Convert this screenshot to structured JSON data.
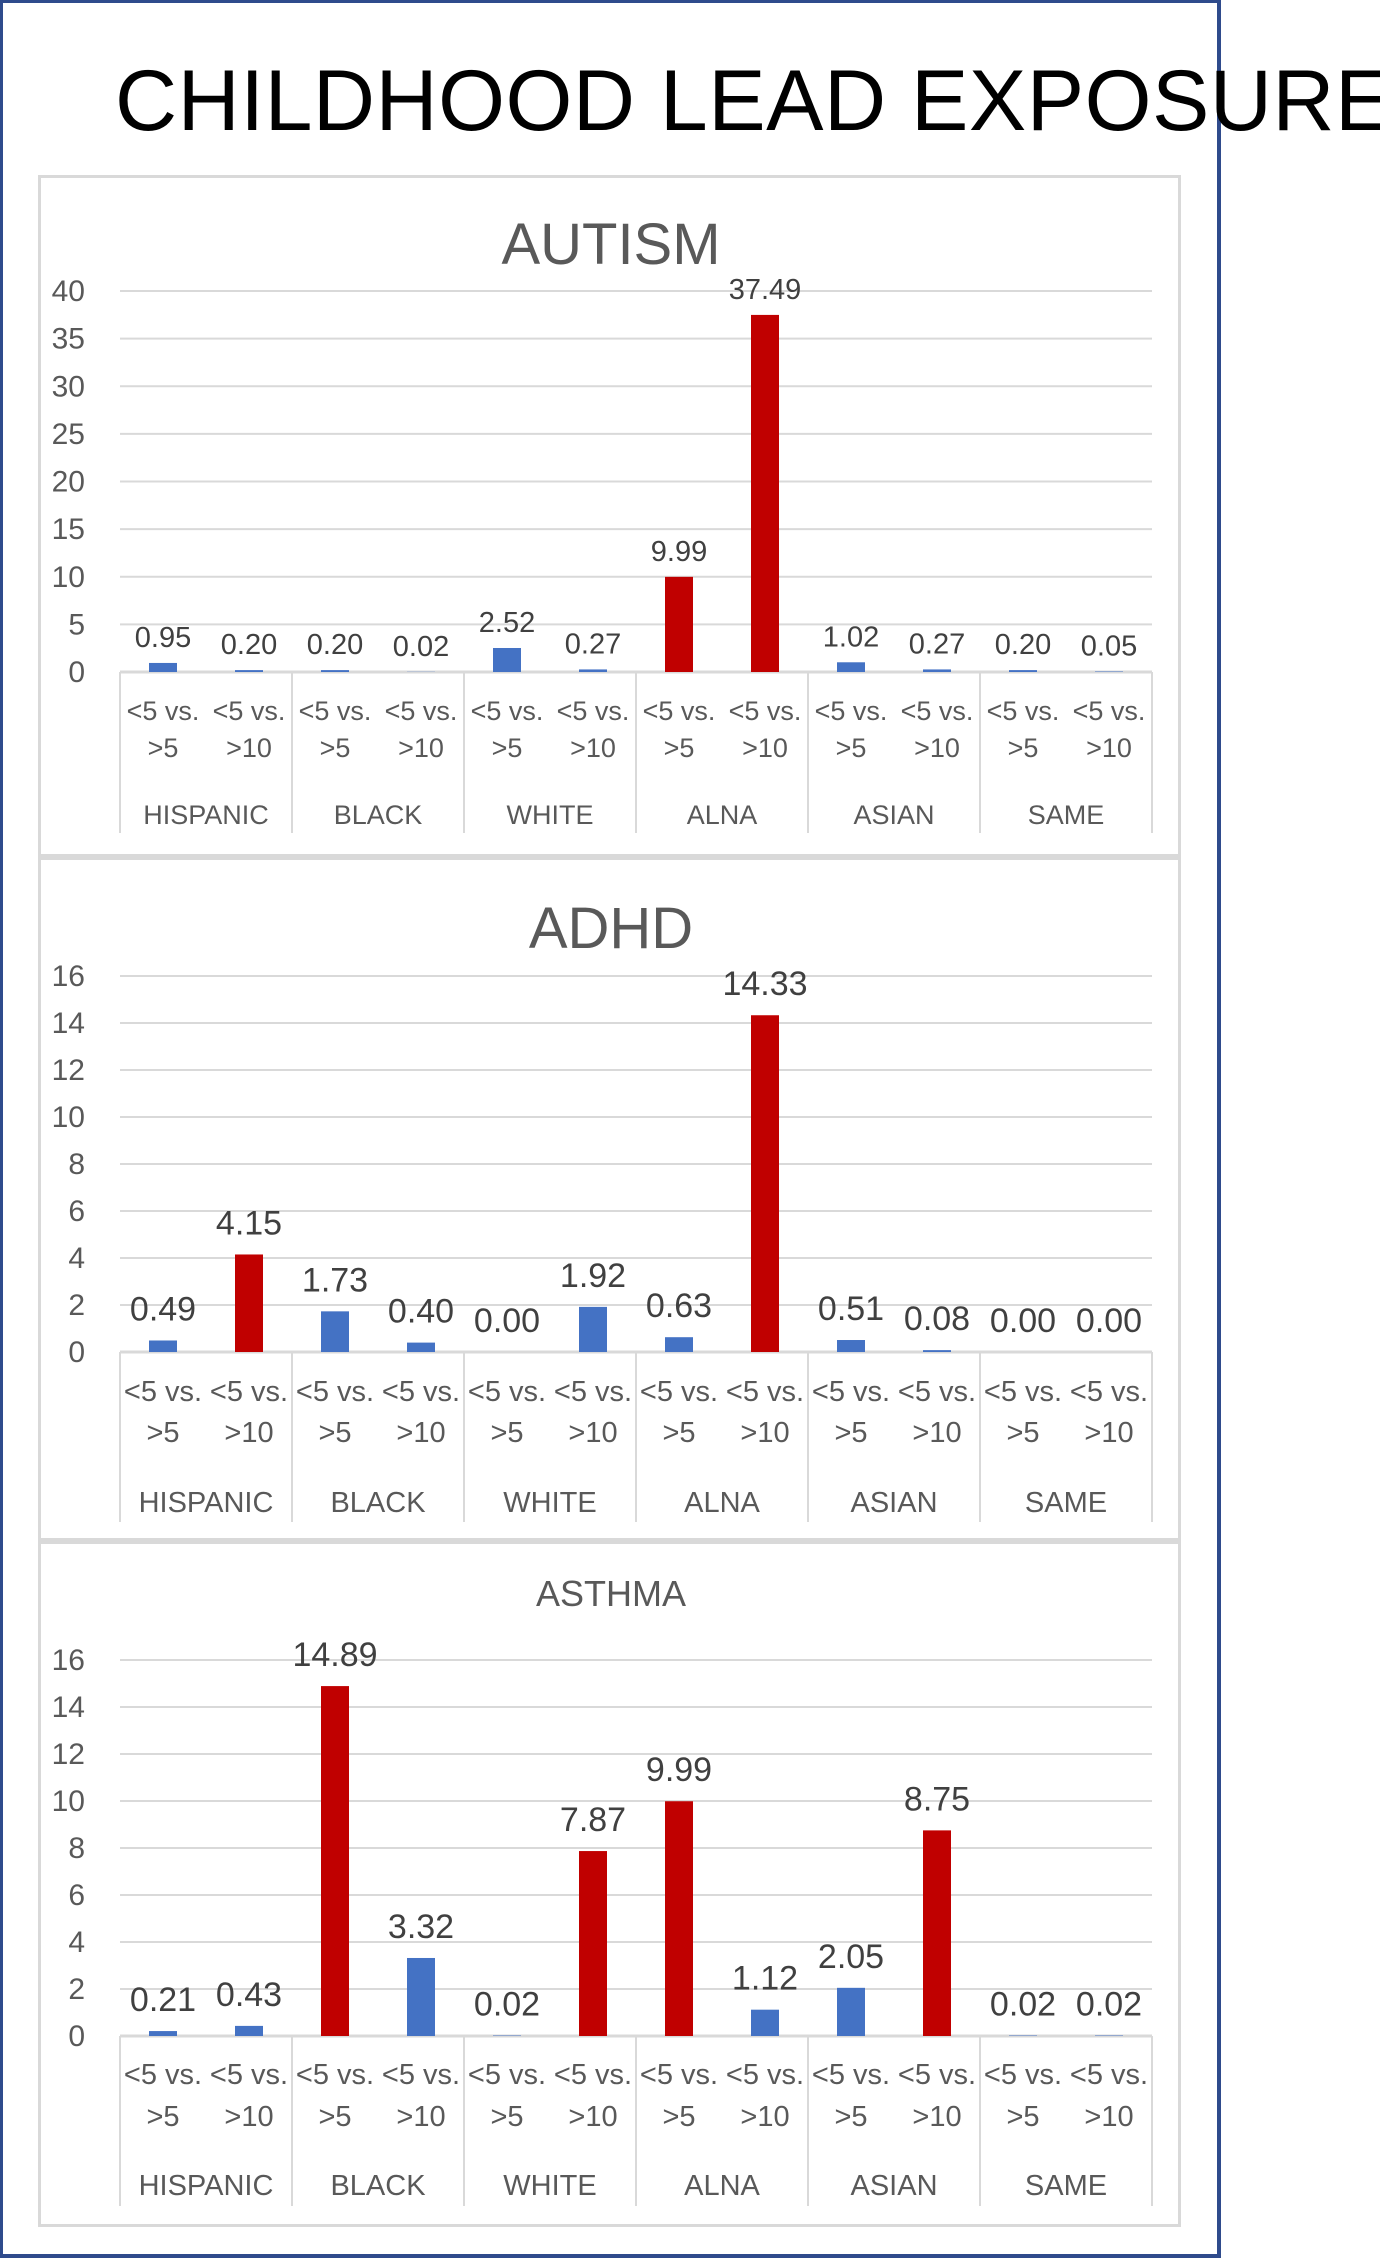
{
  "page": {
    "title": "CHILDHOOD LEAD EXPOSURE"
  },
  "colors": {
    "low": "#4472c4",
    "high": "#c00000",
    "grid": "#d9d9d9",
    "frame": "#2f4b8c"
  },
  "chart_data": [
    {
      "type": "bar",
      "title": "AUTISM",
      "groups": [
        "HISPANIC",
        "BLACK",
        "WHITE",
        "ALNA",
        "ASIAN",
        "SAME"
      ],
      "subcategories": [
        [
          "<5 vs.",
          ">5"
        ],
        [
          "<5 vs.",
          ">10"
        ]
      ],
      "values": [
        0.95,
        0.2,
        0.2,
        0.02,
        2.52,
        0.27,
        9.99,
        37.49,
        1.02,
        0.27,
        0.2,
        0.05
      ],
      "labels": [
        "0.95",
        "0.20",
        "0.20",
        "0.02",
        "2.52",
        "0.27",
        "9.99",
        "37.49",
        "1.02",
        "0.27",
        "0.20",
        "0.05"
      ],
      "highlight": [
        false,
        false,
        false,
        false,
        false,
        false,
        true,
        true,
        false,
        false,
        false,
        false
      ],
      "ylim": [
        0,
        40
      ],
      "yticks": [
        0,
        5,
        10,
        15,
        20,
        25,
        30,
        35,
        40
      ],
      "grid": true,
      "legend": "none"
    },
    {
      "type": "bar",
      "title": "ADHD",
      "groups": [
        "HISPANIC",
        "BLACK",
        "WHITE",
        "ALNA",
        "ASIAN",
        "SAME"
      ],
      "subcategories": [
        [
          "<5 vs.",
          ">5"
        ],
        [
          "<5 vs.",
          ">10"
        ]
      ],
      "values": [
        0.49,
        4.15,
        1.73,
        0.4,
        0.0,
        1.92,
        0.63,
        14.33,
        0.51,
        0.08,
        0.0,
        0.0
      ],
      "labels": [
        "0.49",
        "4.15",
        "1.73",
        "0.40",
        "0.00",
        "1.92",
        "0.63",
        "14.33",
        "0.51",
        "0.08",
        "0.00",
        "0.00"
      ],
      "highlight": [
        false,
        true,
        false,
        false,
        false,
        false,
        false,
        true,
        false,
        false,
        false,
        false
      ],
      "ylim": [
        0,
        16
      ],
      "yticks": [
        0,
        2,
        4,
        6,
        8,
        10,
        12,
        14,
        16
      ],
      "grid": true,
      "legend": "none"
    },
    {
      "type": "bar",
      "title": "ASTHMA",
      "groups": [
        "HISPANIC",
        "BLACK",
        "WHITE",
        "ALNA",
        "ASIAN",
        "SAME"
      ],
      "subcategories": [
        [
          "<5 vs.",
          ">5"
        ],
        [
          "<5 vs.",
          ">10"
        ]
      ],
      "values": [
        0.21,
        0.43,
        14.89,
        3.32,
        0.02,
        7.87,
        9.99,
        1.12,
        2.05,
        8.75,
        0.02,
        0.02
      ],
      "labels": [
        "0.21",
        "0.43",
        "14.89",
        "3.32",
        "0.02",
        "7.87",
        "9.99",
        "1.12",
        "2.05",
        "8.75",
        "0.02",
        "0.02"
      ],
      "highlight": [
        false,
        false,
        true,
        false,
        false,
        true,
        true,
        false,
        false,
        true,
        false,
        false
      ],
      "ylim": [
        0,
        16
      ],
      "yticks": [
        0,
        2,
        4,
        6,
        8,
        10,
        12,
        14,
        16
      ],
      "grid": true,
      "legend": "none"
    }
  ]
}
